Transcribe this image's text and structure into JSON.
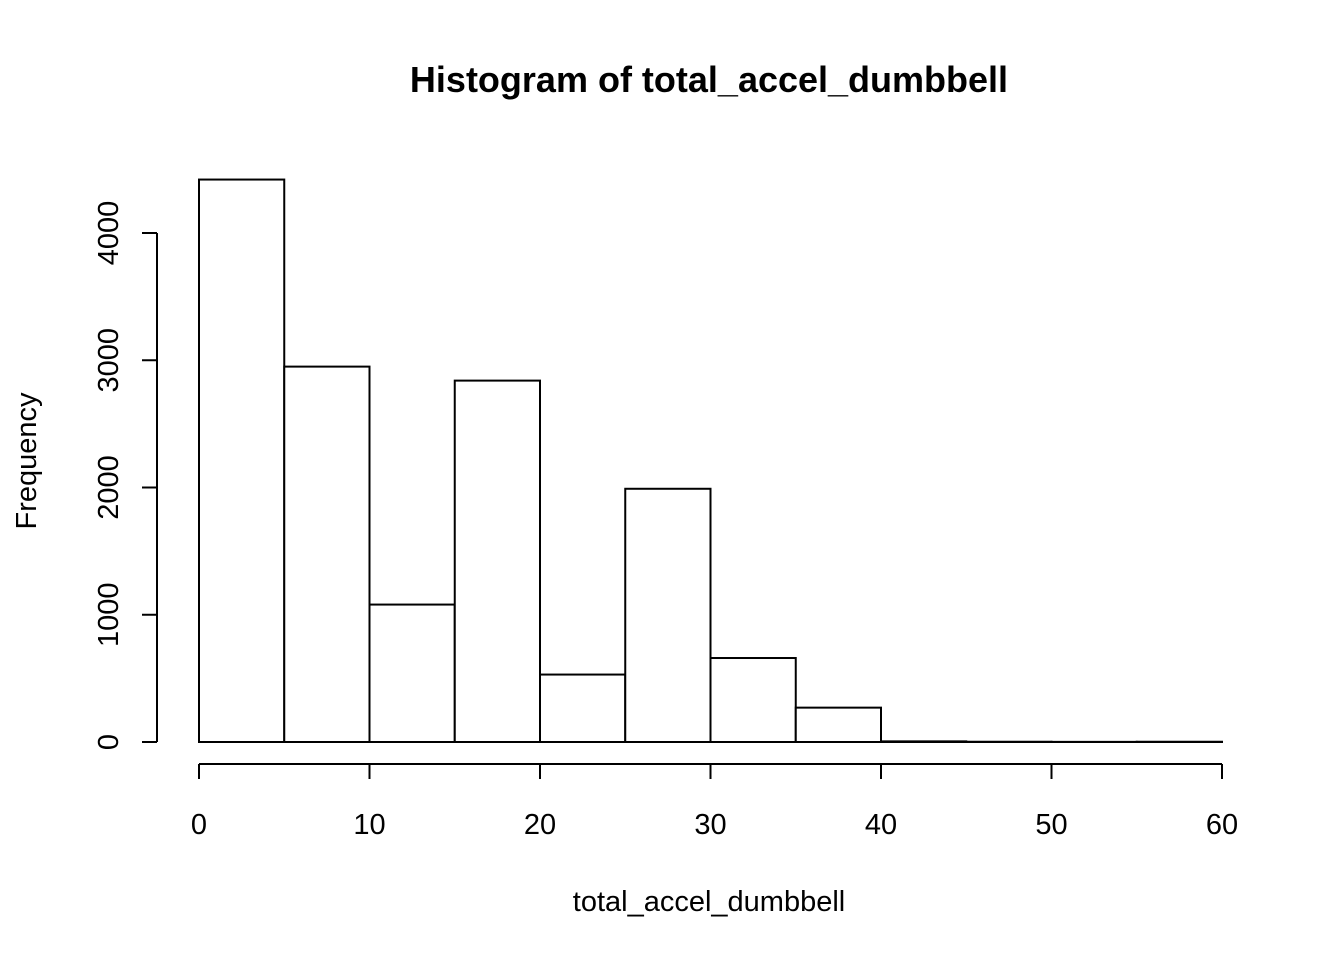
{
  "chart_data": {
    "type": "bar",
    "title": "Histogram of total_accel_dumbbell",
    "xlabel": "total_accel_dumbbell",
    "ylabel": "Frequency",
    "bins": [
      {
        "from": 0,
        "to": 5,
        "count": 4420
      },
      {
        "from": 5,
        "to": 10,
        "count": 2950
      },
      {
        "from": 10,
        "to": 15,
        "count": 1080
      },
      {
        "from": 15,
        "to": 20,
        "count": 2840
      },
      {
        "from": 20,
        "to": 25,
        "count": 530
      },
      {
        "from": 25,
        "to": 30,
        "count": 1990
      },
      {
        "from": 30,
        "to": 35,
        "count": 660
      },
      {
        "from": 35,
        "to": 40,
        "count": 270
      },
      {
        "from": 40,
        "to": 45,
        "count": 5
      },
      {
        "from": 45,
        "to": 50,
        "count": 2
      },
      {
        "from": 50,
        "to": 55,
        "count": 1
      },
      {
        "from": 55,
        "to": 60,
        "count": 2
      }
    ],
    "xlim": [
      0,
      60
    ],
    "ylim": [
      0,
      4420
    ],
    "x_ticks": [
      0,
      10,
      20,
      30,
      40,
      50,
      60
    ],
    "x_tick_labels": [
      "0",
      "10",
      "20",
      "30",
      "40",
      "50",
      "60"
    ],
    "y_ticks": [
      0,
      1000,
      2000,
      3000,
      4000
    ],
    "y_tick_labels": [
      "0",
      "1000",
      "2000",
      "3000",
      "4000"
    ],
    "grid": false,
    "legend": "none",
    "bar_fill": "#ffffff",
    "bar_stroke": "#000000"
  }
}
